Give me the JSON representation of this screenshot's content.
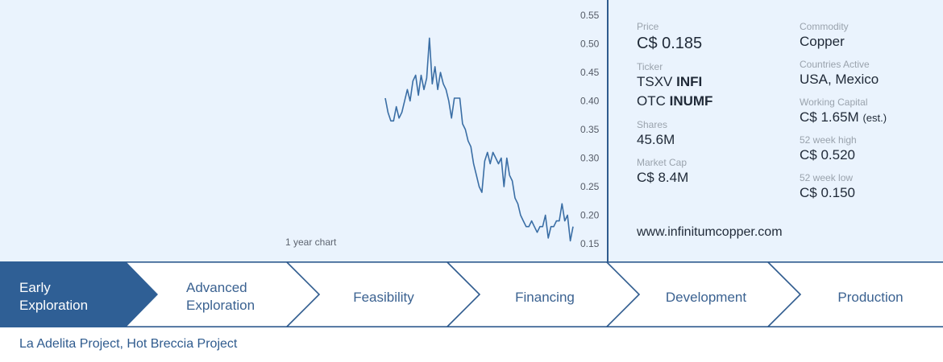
{
  "chart_data": {
    "type": "line",
    "caption": "1 year chart",
    "ylim": [
      0.15,
      0.55
    ],
    "yticks": [
      "0.55",
      "0.50",
      "0.45",
      "0.40",
      "0.35",
      "0.30",
      "0.25",
      "0.20",
      "0.15"
    ],
    "ytick_values": [
      0.55,
      0.5,
      0.45,
      0.4,
      0.35,
      0.3,
      0.25,
      0.2,
      0.15
    ],
    "series": [
      {
        "values": [
          0.405,
          0.38,
          0.365,
          0.365,
          0.39,
          0.37,
          0.38,
          0.4,
          0.42,
          0.4,
          0.435,
          0.445,
          0.41,
          0.445,
          0.42,
          0.44,
          0.51,
          0.43,
          0.46,
          0.42,
          0.45,
          0.43,
          0.42,
          0.4,
          0.37,
          0.405,
          0.405,
          0.405,
          0.36,
          0.35,
          0.33,
          0.32,
          0.29,
          0.27,
          0.25,
          0.24,
          0.295,
          0.31,
          0.29,
          0.31,
          0.3,
          0.29,
          0.3,
          0.25,
          0.3,
          0.27,
          0.26,
          0.23,
          0.22,
          0.2,
          0.19,
          0.18,
          0.18,
          0.19,
          0.18,
          0.17,
          0.18,
          0.18,
          0.2,
          0.16,
          0.18,
          0.18,
          0.19,
          0.19,
          0.22,
          0.19,
          0.2,
          0.155,
          0.18
        ],
        "color": "#3a6ea5"
      }
    ]
  },
  "info": {
    "price_label": "Price",
    "price_value": "C$ 0.185",
    "ticker_label": "Ticker",
    "ticker1_prefix": "TSXV ",
    "ticker1_symbol": "INFI",
    "ticker2_prefix": "OTC ",
    "ticker2_symbol": "INUMF",
    "shares_label": "Shares",
    "shares_value": "45.6M",
    "marketcap_label": "Market Cap",
    "marketcap_value": "C$ 8.4M",
    "commodity_label": "Commodity",
    "commodity_value": "Copper",
    "countries_label": "Countries Active",
    "countries_value": "USA, Mexico",
    "wc_label": "Working Capital",
    "wc_value": "C$ 1.65M",
    "wc_note": "(est.)",
    "high_label": "52 week high",
    "high_value": "C$ 0.520",
    "low_label": "52 week low",
    "low_value": "C$ 0.150",
    "website": "www.infinitumcopper.com"
  },
  "stages": {
    "items": [
      {
        "line1": "Early",
        "line2": "Exploration"
      },
      {
        "line1": "Advanced",
        "line2": "Exploration"
      },
      {
        "line1": "Feasibility",
        "line2": ""
      },
      {
        "line1": "Financing",
        "line2": ""
      },
      {
        "line1": "Development",
        "line2": ""
      },
      {
        "line1": "Production",
        "line2": ""
      }
    ],
    "active_color": "#2f5f95",
    "outline_color": "#2f5b8e"
  },
  "projects": "La Adelita Project, Hot Breccia Project"
}
